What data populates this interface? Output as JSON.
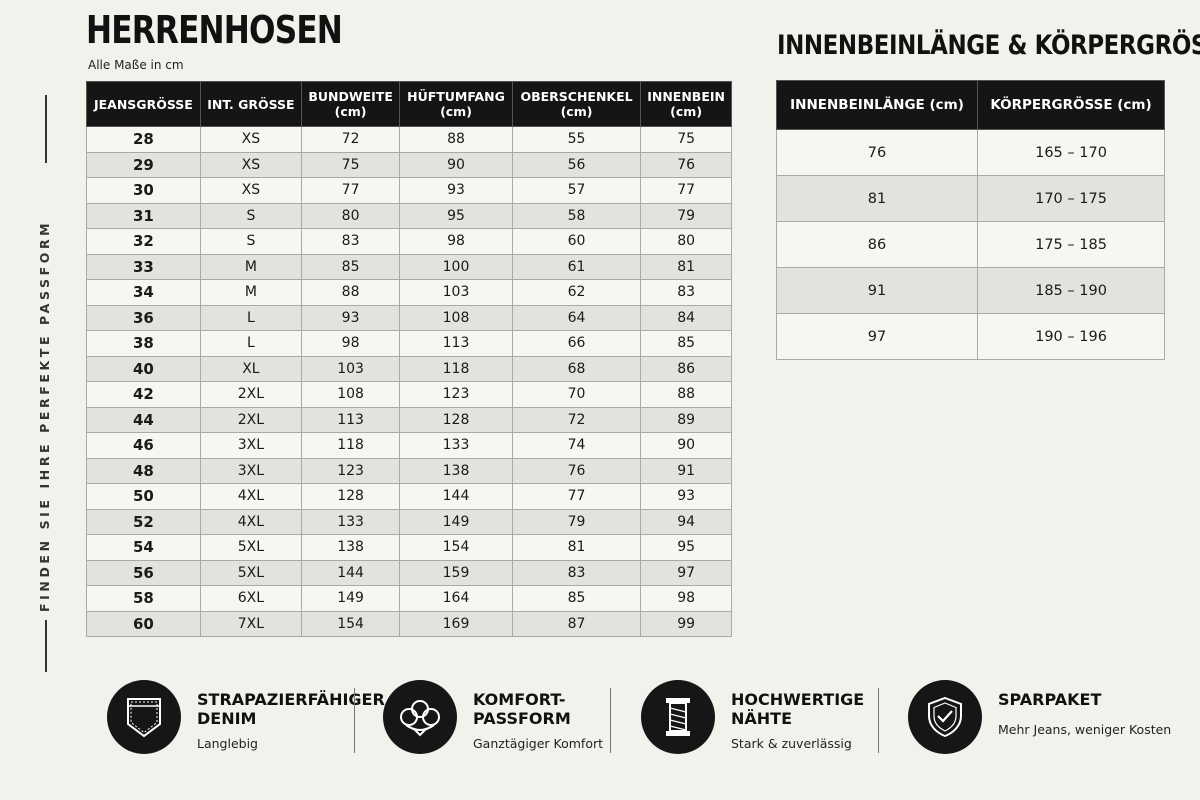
{
  "title": "HERRENHOSEN",
  "subtitle": "Alle Maße in cm",
  "side_text": "FINDEN SIE IHRE PERFEKTE PASSFORM",
  "size_table": {
    "headers": [
      "JEANSGRÖSSE",
      "INT. GRÖSSE",
      "BUNDWEITE\n(cm)",
      "HÜFTUMFANG\n(cm)",
      "OBERSCHENKEL\n(cm)",
      "INNENBEIN\n(cm)"
    ],
    "rows": [
      [
        "28",
        "XS",
        "72",
        "88",
        "55",
        "75"
      ],
      [
        "29",
        "XS",
        "75",
        "90",
        "56",
        "76"
      ],
      [
        "30",
        "XS",
        "77",
        "93",
        "57",
        "77"
      ],
      [
        "31",
        "S",
        "80",
        "95",
        "58",
        "79"
      ],
      [
        "32",
        "S",
        "83",
        "98",
        "60",
        "80"
      ],
      [
        "33",
        "M",
        "85",
        "100",
        "61",
        "81"
      ],
      [
        "34",
        "M",
        "88",
        "103",
        "62",
        "83"
      ],
      [
        "36",
        "L",
        "93",
        "108",
        "64",
        "84"
      ],
      [
        "38",
        "L",
        "98",
        "113",
        "66",
        "85"
      ],
      [
        "40",
        "XL",
        "103",
        "118",
        "68",
        "86"
      ],
      [
        "42",
        "2XL",
        "108",
        "123",
        "70",
        "88"
      ],
      [
        "44",
        "2XL",
        "113",
        "128",
        "72",
        "89"
      ],
      [
        "46",
        "3XL",
        "118",
        "133",
        "74",
        "90"
      ],
      [
        "48",
        "3XL",
        "123",
        "138",
        "76",
        "91"
      ],
      [
        "50",
        "4XL",
        "128",
        "144",
        "77",
        "93"
      ],
      [
        "52",
        "4XL",
        "133",
        "149",
        "79",
        "94"
      ],
      [
        "54",
        "5XL",
        "138",
        "154",
        "81",
        "95"
      ],
      [
        "56",
        "5XL",
        "144",
        "159",
        "83",
        "97"
      ],
      [
        "58",
        "6XL",
        "149",
        "164",
        "85",
        "98"
      ],
      [
        "60",
        "7XL",
        "154",
        "169",
        "87",
        "99"
      ]
    ]
  },
  "height_section": {
    "title": "INNENBEINLÄNGE & KÖRPERGRÖSSE",
    "headers": [
      "INNENBEINLÄNGE (cm)",
      "KÖRPERGRÖSSE (cm)"
    ],
    "rows": [
      [
        "76",
        "165 – 170"
      ],
      [
        "81",
        "170 – 175"
      ],
      [
        "86",
        "175 – 185"
      ],
      [
        "91",
        "185 – 190"
      ],
      [
        "97",
        "190 – 196"
      ]
    ]
  },
  "features": [
    {
      "icon": "jeans-pocket-icon",
      "title": "STRAPAZIERFÄHIGER\nDENIM",
      "subtitle": "Langlebig"
    },
    {
      "icon": "cotton-flower-icon",
      "title": "KOMFORT-\nPASSFORM",
      "subtitle": "Ganztägiger Komfort"
    },
    {
      "icon": "thread-spool-icon",
      "title": "HOCHWERTIGE\nNÄHTE",
      "subtitle": "Stark & zuverlässig"
    },
    {
      "icon": "shield-check-icon",
      "title": "SPARPAKET",
      "subtitle": "Mehr Jeans, weniger Kosten"
    }
  ]
}
